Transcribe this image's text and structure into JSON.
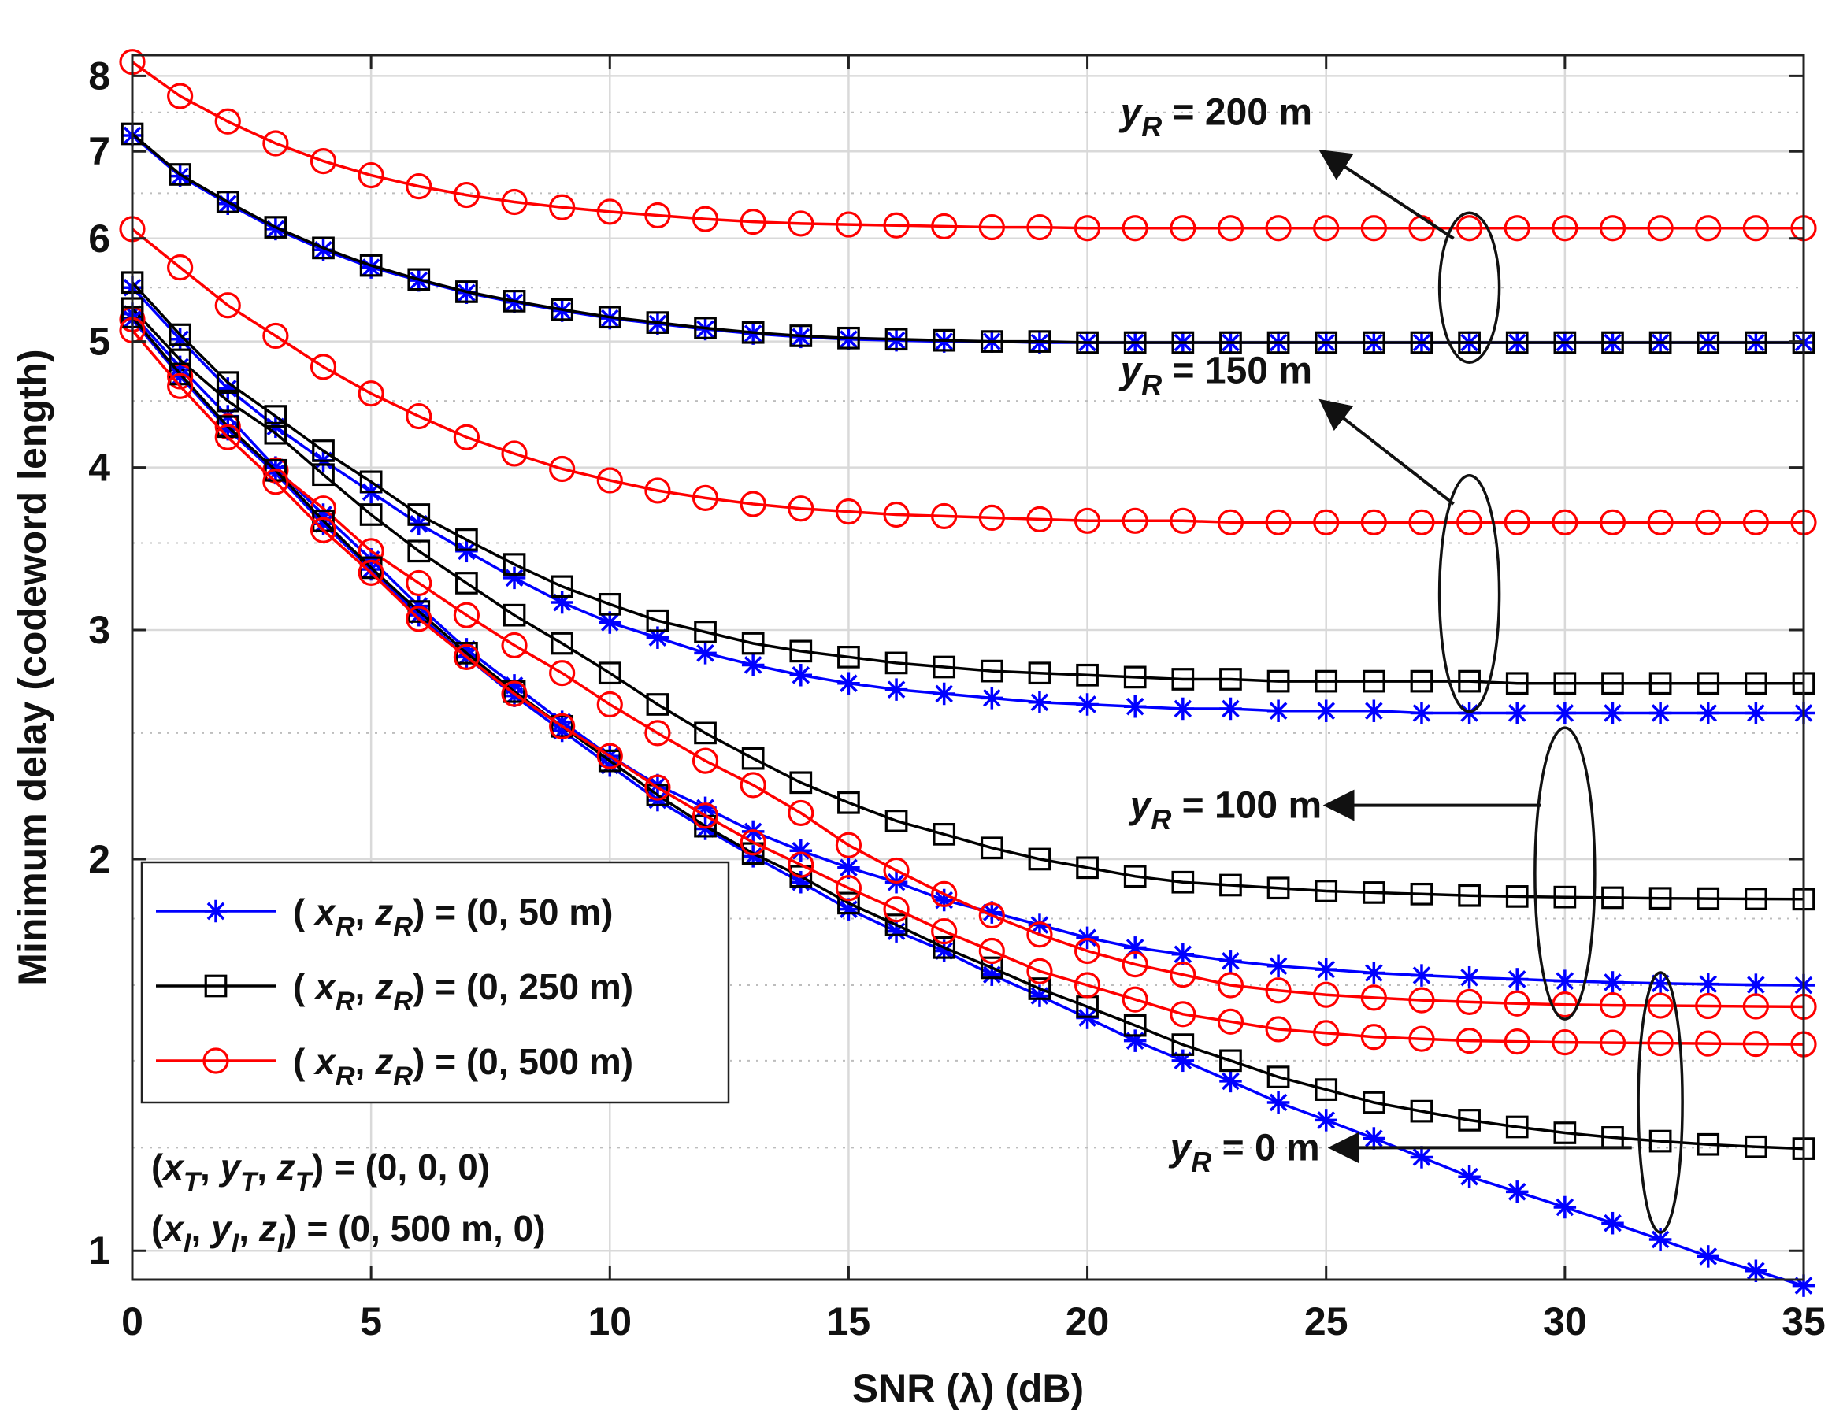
{
  "chart_data": {
    "type": "line",
    "title": "",
    "xlabel": "SNR (λ) (dB)",
    "ylabel": "Minimum delay (codeword length)",
    "xscale": "linear",
    "yscale": "log",
    "xlim": [
      0,
      35
    ],
    "ylim": [
      0.95,
      8.3
    ],
    "grid": true,
    "x_ticks": [
      0,
      5,
      10,
      15,
      20,
      25,
      30,
      35
    ],
    "x_tick_labels": [
      "0",
      "5",
      "10",
      "15",
      "20",
      "25",
      "30",
      "35"
    ],
    "y_ticks": [
      1,
      2,
      3,
      4,
      5,
      6,
      7,
      8
    ],
    "y_tick_labels": [
      "1",
      "2",
      "3",
      "4",
      "5",
      "6",
      "7",
      "8"
    ],
    "x": [
      0,
      1,
      2,
      3,
      4,
      5,
      6,
      7,
      8,
      9,
      10,
      11,
      12,
      13,
      14,
      15,
      16,
      17,
      18,
      19,
      20,
      21,
      22,
      23,
      24,
      25,
      26,
      27,
      28,
      29,
      30,
      31,
      32,
      33,
      34,
      35
    ],
    "series": [
      {
        "name": "blue_yR200",
        "legend": "(x_R, z_R) = (0, 50 m)",
        "group": "yR = 200 m",
        "color": "#0000ff",
        "marker": "asterisk",
        "values": [
          7.2,
          6.7,
          6.38,
          6.1,
          5.88,
          5.7,
          5.57,
          5.45,
          5.36,
          5.28,
          5.21,
          5.16,
          5.11,
          5.07,
          5.04,
          5.02,
          5.01,
          5.0,
          5.0,
          4.99,
          4.99,
          4.99,
          4.99,
          4.99,
          4.99,
          4.99,
          4.99,
          4.99,
          4.99,
          4.99,
          4.99,
          4.99,
          4.99,
          4.99,
          4.99,
          4.99
        ]
      },
      {
        "name": "black_yR200",
        "legend": "(x_R, z_R) = (0, 250 m)",
        "group": "yR = 200 m",
        "color": "#000000",
        "marker": "square",
        "values": [
          7.22,
          6.72,
          6.4,
          6.12,
          5.9,
          5.72,
          5.58,
          5.46,
          5.37,
          5.29,
          5.22,
          5.17,
          5.12,
          5.08,
          5.05,
          5.03,
          5.02,
          5.01,
          5.0,
          5.0,
          4.99,
          4.99,
          4.99,
          4.99,
          4.99,
          4.99,
          4.99,
          4.99,
          4.99,
          4.99,
          4.99,
          4.99,
          4.99,
          4.99,
          4.99,
          4.99
        ]
      },
      {
        "name": "red_yR200",
        "legend": "(x_R, z_R) = (0, 500 m)",
        "group": "yR = 200 m",
        "color": "#ff0000",
        "marker": "circle",
        "values": [
          8.2,
          7.72,
          7.38,
          7.1,
          6.88,
          6.71,
          6.58,
          6.48,
          6.4,
          6.34,
          6.29,
          6.25,
          6.21,
          6.18,
          6.16,
          6.15,
          6.14,
          6.13,
          6.12,
          6.12,
          6.11,
          6.11,
          6.11,
          6.11,
          6.11,
          6.11,
          6.11,
          6.11,
          6.11,
          6.11,
          6.11,
          6.11,
          6.11,
          6.11,
          6.11,
          6.11
        ]
      },
      {
        "name": "blue_yR150",
        "legend": "(x_R, z_R) = (0, 50 m)",
        "group": "yR = 150 m",
        "color": "#0000ff",
        "marker": "asterisk",
        "values": [
          5.5,
          5.02,
          4.6,
          4.3,
          4.05,
          3.83,
          3.62,
          3.45,
          3.29,
          3.15,
          3.04,
          2.96,
          2.88,
          2.82,
          2.77,
          2.73,
          2.7,
          2.68,
          2.66,
          2.64,
          2.63,
          2.62,
          2.61,
          2.61,
          2.6,
          2.6,
          2.6,
          2.59,
          2.59,
          2.59,
          2.59,
          2.59,
          2.59,
          2.59,
          2.59,
          2.59
        ]
      },
      {
        "name": "black_yR150",
        "legend": "(x_R, z_R) = (0, 250 m)",
        "group": "yR = 150 m",
        "color": "#000000",
        "marker": "square",
        "values": [
          5.55,
          5.06,
          4.65,
          4.38,
          4.12,
          3.9,
          3.68,
          3.52,
          3.37,
          3.24,
          3.14,
          3.05,
          2.99,
          2.93,
          2.89,
          2.86,
          2.83,
          2.81,
          2.79,
          2.78,
          2.77,
          2.76,
          2.75,
          2.75,
          2.74,
          2.74,
          2.74,
          2.74,
          2.74,
          2.73,
          2.73,
          2.73,
          2.73,
          2.73,
          2.73,
          2.73
        ]
      },
      {
        "name": "red_yR150",
        "legend": "(x_R, z_R) = (0, 500 m)",
        "group": "yR = 150 m",
        "color": "#ff0000",
        "marker": "circle",
        "values": [
          6.1,
          5.7,
          5.33,
          5.05,
          4.78,
          4.56,
          4.38,
          4.22,
          4.1,
          3.99,
          3.91,
          3.84,
          3.79,
          3.75,
          3.72,
          3.7,
          3.68,
          3.67,
          3.66,
          3.65,
          3.64,
          3.64,
          3.64,
          3.63,
          3.63,
          3.63,
          3.63,
          3.63,
          3.63,
          3.63,
          3.63,
          3.63,
          3.63,
          3.63,
          3.63,
          3.63
        ]
      },
      {
        "name": "blue_yR100",
        "legend": "(x_R, z_R) = (0, 50 m)",
        "group": "yR = 100 m",
        "color": "#0000ff",
        "marker": "asterisk",
        "values": [
          5.25,
          4.78,
          4.38,
          4.0,
          3.68,
          3.4,
          3.13,
          2.9,
          2.72,
          2.55,
          2.4,
          2.28,
          2.19,
          2.1,
          2.03,
          1.97,
          1.92,
          1.86,
          1.82,
          1.78,
          1.74,
          1.71,
          1.69,
          1.67,
          1.655,
          1.645,
          1.635,
          1.628,
          1.622,
          1.617,
          1.612,
          1.608,
          1.605,
          1.603,
          1.601,
          1.6
        ]
      },
      {
        "name": "black_yR100",
        "legend": "(x_R, z_R) = (0, 250 m)",
        "group": "yR = 100 m",
        "color": "#000000",
        "marker": "square",
        "values": [
          5.3,
          4.84,
          4.5,
          4.25,
          3.95,
          3.68,
          3.45,
          3.26,
          3.08,
          2.93,
          2.78,
          2.63,
          2.5,
          2.39,
          2.29,
          2.21,
          2.14,
          2.09,
          2.04,
          2.0,
          1.97,
          1.94,
          1.92,
          1.91,
          1.9,
          1.89,
          1.885,
          1.88,
          1.875,
          1.872,
          1.87,
          1.868,
          1.866,
          1.865,
          1.864,
          1.863
        ]
      },
      {
        "name": "red_yR100",
        "legend": "(x_R, z_R) = (0, 500 m)",
        "group": "yR = 100 m",
        "color": "#ff0000",
        "marker": "circle",
        "values": [
          5.2,
          4.7,
          4.3,
          3.98,
          3.72,
          3.45,
          3.26,
          3.08,
          2.92,
          2.78,
          2.63,
          2.5,
          2.38,
          2.28,
          2.17,
          2.05,
          1.96,
          1.88,
          1.81,
          1.75,
          1.7,
          1.66,
          1.63,
          1.6,
          1.585,
          1.573,
          1.565,
          1.558,
          1.553,
          1.549,
          1.546,
          1.544,
          1.543,
          1.542,
          1.541,
          1.54
        ]
      },
      {
        "name": "blue_yR0",
        "legend": "(x_R, z_R) = (0, 50 m)",
        "group": "yR = 0 m",
        "color": "#0000ff",
        "marker": "asterisk",
        "values": [
          5.2,
          4.7,
          4.28,
          3.96,
          3.62,
          3.34,
          3.08,
          2.86,
          2.67,
          2.51,
          2.36,
          2.22,
          2.11,
          2.01,
          1.92,
          1.83,
          1.76,
          1.7,
          1.63,
          1.57,
          1.51,
          1.45,
          1.4,
          1.35,
          1.3,
          1.26,
          1.22,
          1.18,
          1.14,
          1.11,
          1.08,
          1.05,
          1.02,
          0.99,
          0.965,
          0.94
        ]
      },
      {
        "name": "black_yR0",
        "legend": "(x_R, z_R) = (0, 250 m)",
        "group": "yR = 0 m",
        "color": "#000000",
        "marker": "square",
        "values": [
          5.22,
          4.72,
          4.3,
          3.98,
          3.64,
          3.35,
          3.1,
          2.88,
          2.69,
          2.53,
          2.38,
          2.24,
          2.12,
          2.02,
          1.94,
          1.85,
          1.78,
          1.71,
          1.65,
          1.59,
          1.54,
          1.49,
          1.44,
          1.4,
          1.36,
          1.33,
          1.3,
          1.28,
          1.26,
          1.245,
          1.232,
          1.222,
          1.214,
          1.207,
          1.202,
          1.198
        ]
      },
      {
        "name": "red_yR0",
        "legend": "(x_R, z_R) = (0, 500 m)",
        "group": "yR = 0 m",
        "color": "#ff0000",
        "marker": "circle",
        "values": [
          5.1,
          4.62,
          4.22,
          3.9,
          3.58,
          3.32,
          3.06,
          2.86,
          2.68,
          2.53,
          2.4,
          2.27,
          2.16,
          2.06,
          1.98,
          1.9,
          1.83,
          1.76,
          1.7,
          1.64,
          1.6,
          1.56,
          1.52,
          1.5,
          1.48,
          1.47,
          1.46,
          1.455,
          1.45,
          1.448,
          1.446,
          1.445,
          1.444,
          1.443,
          1.442,
          1.441
        ]
      }
    ],
    "legend": {
      "placement": "middle-left",
      "entries": [
        {
          "label": "( x_R, z_R) = (0, 50 m)",
          "color": "#0000ff",
          "marker": "asterisk"
        },
        {
          "label": "( x_R, z_R) = (0, 250 m)",
          "color": "#000000",
          "marker": "square"
        },
        {
          "label": "( x_R, z_R) = (0, 500 m)",
          "color": "#ff0000",
          "marker": "circle"
        }
      ]
    },
    "annotations": [
      {
        "label": "y_R = 200 m",
        "target_x": 28,
        "target_y": 5.5
      },
      {
        "label": "y_R = 150 m",
        "target_x": 28,
        "target_y": 3.2
      },
      {
        "label": "y_R = 100 m",
        "target_x": 30,
        "target_y": 1.95
      },
      {
        "label": "y_R = 0 m",
        "target_x": 32,
        "target_y": 1.3
      }
    ],
    "info_lines": [
      "(x_T, y_T, z_T) = (0, 0, 0)",
      "(x_I, y_I, z_I) = (0, 500 m, 0)"
    ]
  }
}
